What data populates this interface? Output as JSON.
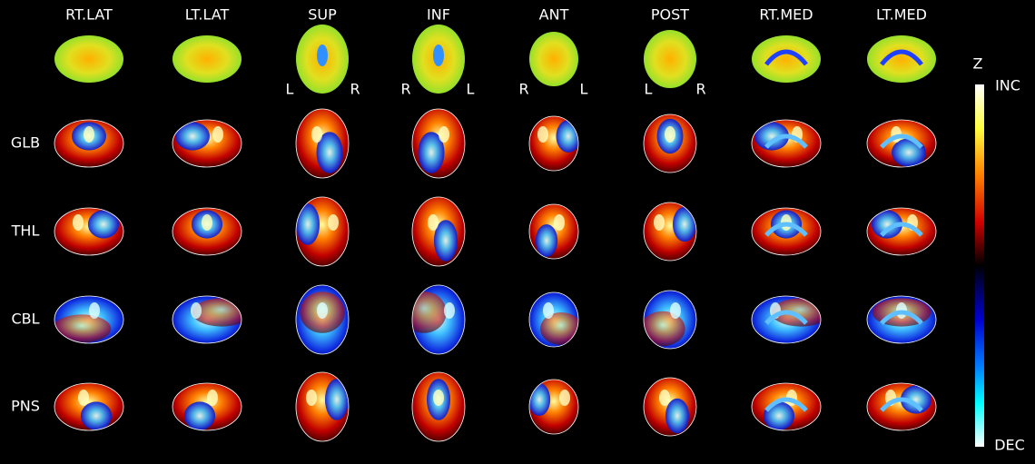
{
  "columns": [
    "RT.LAT",
    "LT.LAT",
    "SUP",
    "INF",
    "ANT",
    "POST",
    "RT.MED",
    "LT.MED"
  ],
  "rows": [
    "GLB",
    "THL",
    "CBL",
    "PNS"
  ],
  "orientation_labels": [
    {
      "view": "SUP",
      "left": "L",
      "right": "R"
    },
    {
      "view": "INF",
      "left": "R",
      "right": "L"
    },
    {
      "view": "ANT",
      "left": "R",
      "right": "L"
    },
    {
      "view": "POST",
      "left": "L",
      "right": "R"
    }
  ],
  "colorbar": {
    "title": "Z",
    "top": "INC",
    "bottom": "DEC"
  }
}
